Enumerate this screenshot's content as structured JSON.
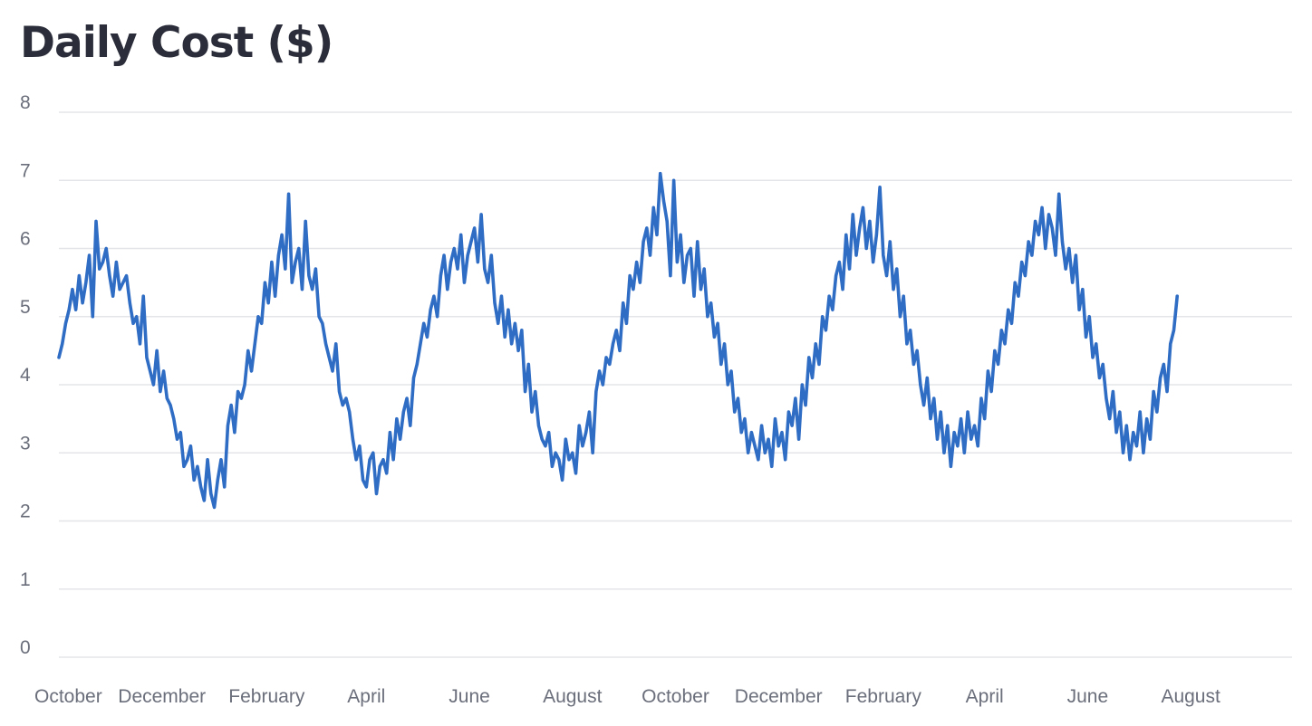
{
  "chart_data": {
    "type": "line",
    "title": "Daily Cost ($)",
    "xlabel": "",
    "ylabel": "",
    "ylim": [
      0,
      8
    ],
    "y_ticks": [
      0,
      1,
      2,
      3,
      4,
      5,
      6,
      7,
      8
    ],
    "x_range": [
      "2014-10-01",
      "2016-09-30"
    ],
    "x_ticks": [
      {
        "date": "2014-10-01",
        "label": "October"
      },
      {
        "date": "2014-12-01",
        "label": "December"
      },
      {
        "date": "2015-02-01",
        "label": "February"
      },
      {
        "date": "2015-04-01",
        "label": "April"
      },
      {
        "date": "2015-06-01",
        "label": "June"
      },
      {
        "date": "2015-08-01",
        "label": "August"
      },
      {
        "date": "2015-10-01",
        "label": "October"
      },
      {
        "date": "2015-12-01",
        "label": "December"
      },
      {
        "date": "2016-02-01",
        "label": "February"
      },
      {
        "date": "2016-04-01",
        "label": "April"
      },
      {
        "date": "2016-06-01",
        "label": "June"
      },
      {
        "date": "2016-08-01",
        "label": "August"
      }
    ],
    "grid": true,
    "legend": "none",
    "colors": {
      "line": "#2f6cc4",
      "grid": "#e4e5e8",
      "title": "#2b2e3a",
      "ticks": "#6b6f7b"
    },
    "series": [
      {
        "start_date": "2014-10-01",
        "step_days": 2,
        "values": [
          4.4,
          4.6,
          4.9,
          5.1,
          5.4,
          5.1,
          5.6,
          5.2,
          5.5,
          5.9,
          5.0,
          6.4,
          5.7,
          5.8,
          6.0,
          5.6,
          5.3,
          5.8,
          5.4,
          5.5,
          5.6,
          5.2,
          4.9,
          5.0,
          4.6,
          5.3,
          4.4,
          4.2,
          4.0,
          4.5,
          3.9,
          4.2,
          3.8,
          3.7,
          3.5,
          3.2,
          3.3,
          2.8,
          2.9,
          3.1,
          2.6,
          2.8,
          2.5,
          2.3,
          2.9,
          2.4,
          2.2,
          2.6,
          2.9,
          2.5,
          3.4,
          3.7,
          3.3,
          3.9,
          3.8,
          4.0,
          4.5,
          4.2,
          4.6,
          5.0,
          4.9,
          5.5,
          5.2,
          5.8,
          5.3,
          5.9,
          6.2,
          5.7,
          6.8,
          5.5,
          5.8,
          6.0,
          5.4,
          6.4,
          5.6,
          5.4,
          5.7,
          5.0,
          4.9,
          4.6,
          4.4,
          4.2,
          4.6,
          3.9,
          3.7,
          3.8,
          3.6,
          3.2,
          2.9,
          3.1,
          2.6,
          2.5,
          2.9,
          3.0,
          2.4,
          2.8,
          2.9,
          2.7,
          3.3,
          2.9,
          3.5,
          3.2,
          3.6,
          3.8,
          3.4,
          4.1,
          4.3,
          4.6,
          4.9,
          4.7,
          5.1,
          5.3,
          5.0,
          5.6,
          5.9,
          5.4,
          5.8,
          6.0,
          5.7,
          6.2,
          5.5,
          5.9,
          6.1,
          6.3,
          5.8,
          6.5,
          5.7,
          5.5,
          5.9,
          5.2,
          4.9,
          5.3,
          4.7,
          5.1,
          4.6,
          4.9,
          4.5,
          4.8,
          3.9,
          4.3,
          3.6,
          3.9,
          3.4,
          3.2,
          3.1,
          3.3,
          2.8,
          3.0,
          2.9,
          2.6,
          3.2,
          2.9,
          3.0,
          2.7,
          3.4,
          3.1,
          3.3,
          3.6,
          3.0,
          3.9,
          4.2,
          4.0,
          4.4,
          4.3,
          4.6,
          4.8,
          4.5,
          5.2,
          4.9,
          5.6,
          5.4,
          5.8,
          5.5,
          6.1,
          6.3,
          5.9,
          6.6,
          6.2,
          7.1,
          6.7,
          6.4,
          5.6,
          7.0,
          5.8,
          6.2,
          5.5,
          5.9,
          6.0,
          5.3,
          6.1,
          5.4,
          5.7,
          5.0,
          5.2,
          4.7,
          4.9,
          4.3,
          4.6,
          4.0,
          4.2,
          3.6,
          3.8,
          3.3,
          3.5,
          3.0,
          3.3,
          3.1,
          2.9,
          3.4,
          3.0,
          3.2,
          2.8,
          3.5,
          3.1,
          3.3,
          2.9,
          3.6,
          3.4,
          3.8,
          3.2,
          4.0,
          3.7,
          4.4,
          4.1,
          4.6,
          4.3,
          5.0,
          4.8,
          5.3,
          5.1,
          5.6,
          5.8,
          5.4,
          6.2,
          5.7,
          6.5,
          5.9,
          6.3,
          6.6,
          6.0,
          6.4,
          5.8,
          6.2,
          6.9,
          5.9,
          5.6,
          6.1,
          5.4,
          5.7,
          5.0,
          5.3,
          4.6,
          4.8,
          4.3,
          4.5,
          4.0,
          3.7,
          4.1,
          3.5,
          3.8,
          3.2,
          3.6,
          3.0,
          3.4,
          2.8,
          3.3,
          3.1,
          3.5,
          3.0,
          3.6,
          3.2,
          3.4,
          3.1,
          3.8,
          3.5,
          4.2,
          3.9,
          4.5,
          4.3,
          4.8,
          4.6,
          5.1,
          4.9,
          5.5,
          5.3,
          5.8,
          5.6,
          6.1,
          5.9,
          6.4,
          6.2,
          6.6,
          6.0,
          6.5,
          6.3,
          5.9,
          6.8,
          6.1,
          5.7,
          6.0,
          5.5,
          5.9,
          5.1,
          5.4,
          4.7,
          5.0,
          4.4,
          4.6,
          4.1,
          4.3,
          3.8,
          3.5,
          3.9,
          3.3,
          3.6,
          3.0,
          3.4,
          2.9,
          3.3,
          3.1,
          3.6,
          3.0,
          3.5,
          3.2,
          3.9,
          3.6,
          4.1,
          4.3,
          3.9,
          4.6,
          4.8,
          5.3
        ]
      }
    ]
  }
}
